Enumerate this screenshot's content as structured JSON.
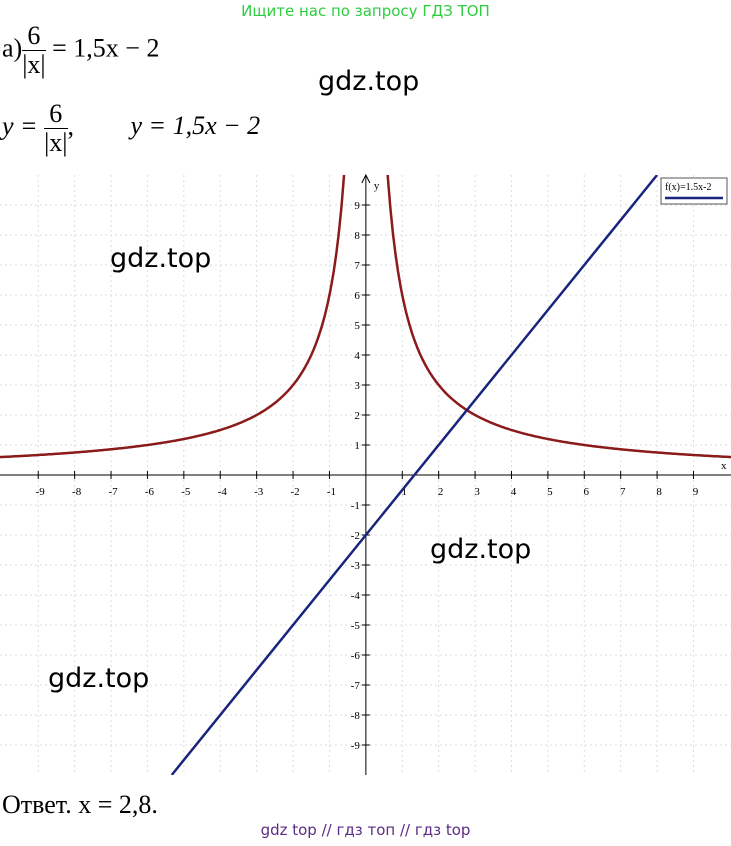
{
  "header": {
    "banner": "Ищите нас по запросу ГДЗ ТОП"
  },
  "task": {
    "label": "а)",
    "num": "6",
    "den": "|x|",
    "rhs": "= 1,5x − 2"
  },
  "functions": {
    "y1": "y =",
    "y1_num": "6",
    "y1_den": "|x|",
    "y1_sep": ",",
    "y2": "y = 1,5x − 2"
  },
  "graph": {
    "x_label": "x",
    "y_label": "y",
    "xlim": [
      -10.05,
      10.03
    ],
    "ylim": [
      -10,
      10
    ],
    "xticks": [
      -9,
      -8,
      -7,
      -6,
      -5,
      -4,
      -3,
      -2,
      -1,
      1,
      2,
      3,
      4,
      5,
      6,
      7,
      8,
      9
    ],
    "yticks": [
      -9,
      -8,
      -7,
      -6,
      -5,
      -4,
      -3,
      -2,
      -1,
      1,
      2,
      3,
      4,
      5,
      6,
      7,
      8,
      9
    ],
    "grid": true,
    "legend": "f(x)=1.5x-2",
    "curves": [
      {
        "color": "#8b1a1a",
        "k": 6
      },
      {
        "color": "#1a237e",
        "slope": 1.5,
        "intercept": -2
      }
    ]
  },
  "answer": "Ответ. x = 2,8.",
  "watermarks": [
    "gdz.top",
    "gdz.top",
    "gdz.top",
    "gdz.top"
  ],
  "footer": "gdz top  //  гдз топ  //  гдз top"
}
